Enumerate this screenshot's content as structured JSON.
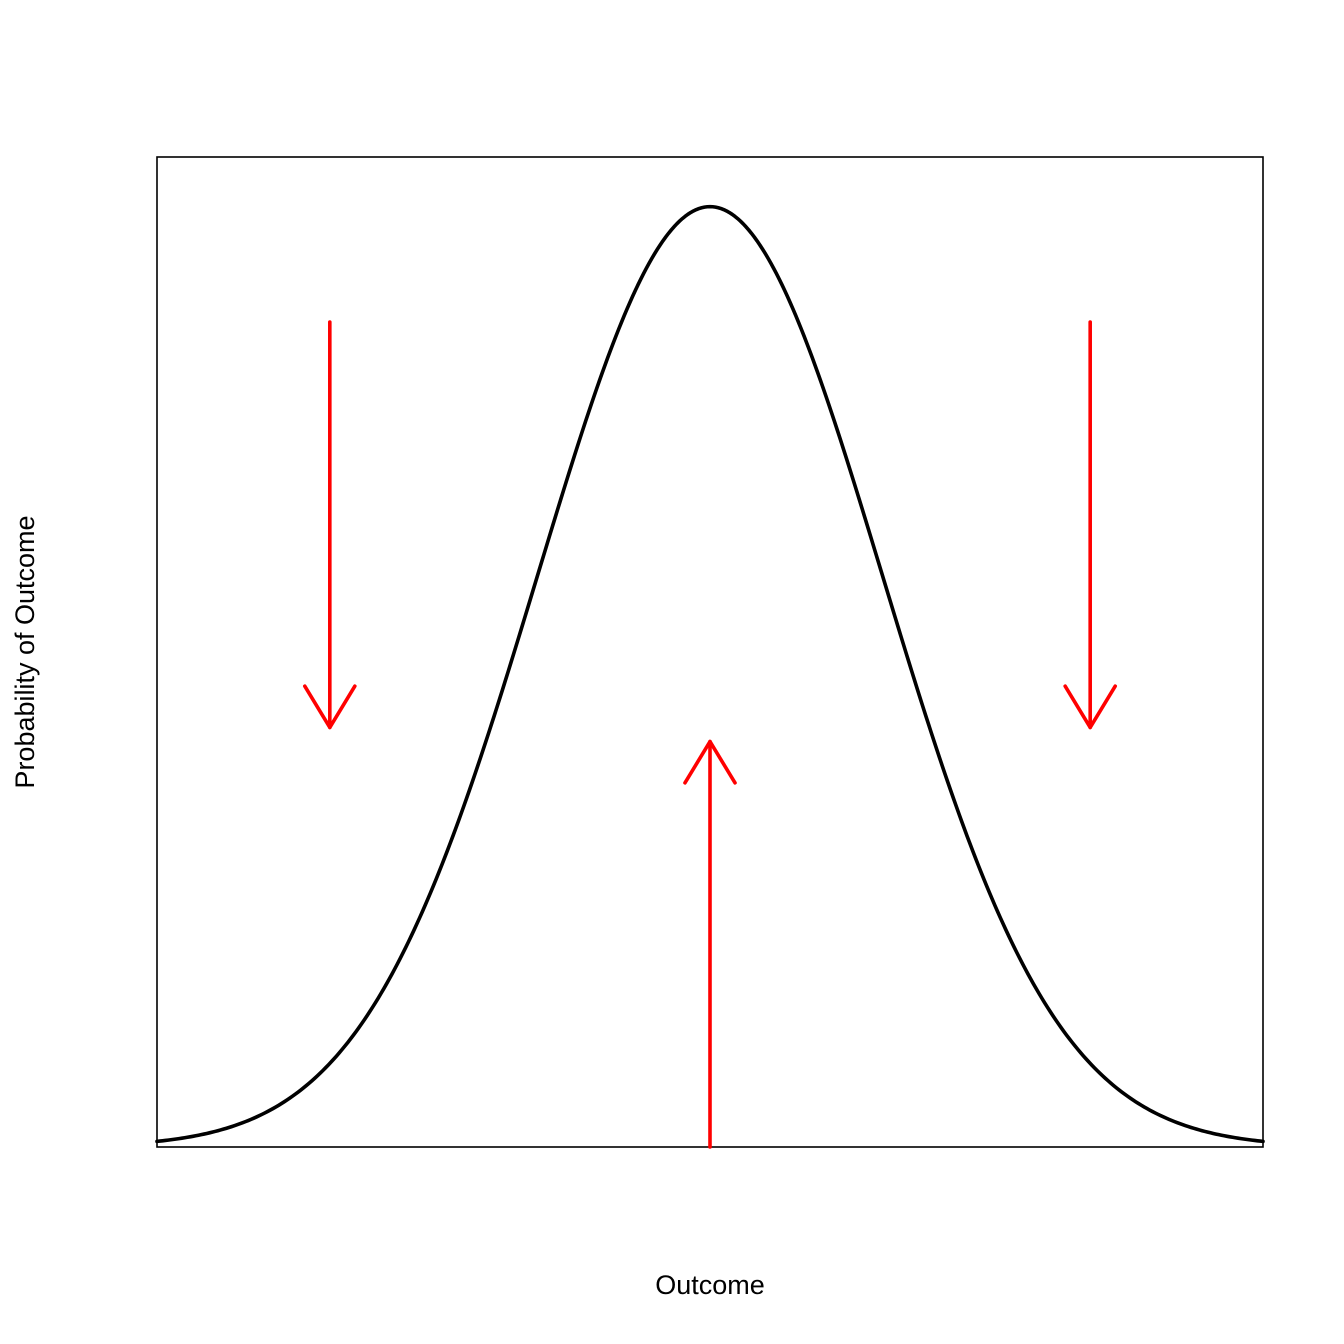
{
  "chart_data": {
    "type": "line",
    "title": "",
    "xlabel": "Outcome",
    "ylabel": "Probability of Outcome",
    "xlim": [
      -3.2,
      3.2
    ],
    "ylim": [
      0,
      0.42
    ],
    "grid": false,
    "series": [
      {
        "curve": "normal density",
        "mean": 0,
        "sd": 1,
        "x_range": [
          -3.2,
          3.2
        ],
        "color": "#000000"
      }
    ],
    "annotations": [
      {
        "type": "arrow",
        "direction": "down",
        "x": -2.2,
        "y_from": 0.35,
        "y_to": 0.178,
        "color": "#ff0000"
      },
      {
        "type": "arrow",
        "direction": "up",
        "x": 0,
        "y_from": 0,
        "y_to": 0.172,
        "color": "#ff0000"
      },
      {
        "type": "arrow",
        "direction": "down",
        "x": 2.2,
        "y_from": 0.35,
        "y_to": 0.178,
        "color": "#ff0000"
      }
    ]
  }
}
